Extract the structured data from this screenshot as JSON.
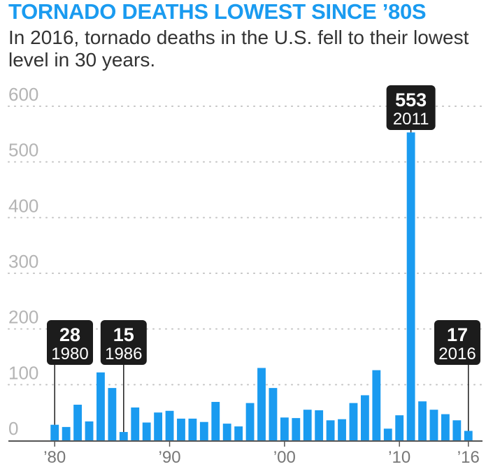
{
  "title": "TORNADO DEATHS LOWEST SINCE ’80S",
  "subtitle": "In 2016, tornado deaths in the U.S. fell to their lowest level in 30 years.",
  "colors": {
    "accent": "#1a9bf0",
    "bar": "#1a9bf0",
    "callout": "#1c1c1c",
    "text": "#333333"
  },
  "chart_data": {
    "type": "bar",
    "title": "TORNADO DEATHS LOWEST SINCE ’80S",
    "subtitle": "In 2016, tornado deaths in the U.S. fell to their lowest level in 30 years.",
    "xlabel": "",
    "ylabel": "",
    "ylim": [
      0,
      600
    ],
    "yticks": [
      0,
      100,
      200,
      300,
      400,
      500,
      600
    ],
    "grid": true,
    "xtick_labels": [
      {
        "year": 1980,
        "label": "’80"
      },
      {
        "year": 1990,
        "label": "’90"
      },
      {
        "year": 2000,
        "label": "’00"
      },
      {
        "year": 2010,
        "label": "’10"
      },
      {
        "year": 2016,
        "label": "’16"
      }
    ],
    "categories": [
      1980,
      1981,
      1982,
      1983,
      1984,
      1985,
      1986,
      1987,
      1988,
      1989,
      1990,
      1991,
      1992,
      1993,
      1994,
      1995,
      1996,
      1997,
      1998,
      1999,
      2000,
      2001,
      2002,
      2003,
      2004,
      2005,
      2006,
      2007,
      2008,
      2009,
      2010,
      2011,
      2012,
      2013,
      2014,
      2015,
      2016
    ],
    "values": [
      28,
      24,
      64,
      34,
      122,
      94,
      15,
      59,
      32,
      50,
      53,
      39,
      39,
      33,
      69,
      30,
      25,
      67,
      130,
      94,
      41,
      40,
      55,
      54,
      36,
      38,
      67,
      81,
      126,
      21,
      45,
      553,
      70,
      55,
      47,
      36,
      17
    ],
    "callouts": [
      {
        "year": 1980,
        "value": "28",
        "label": "1980"
      },
      {
        "year": 1986,
        "value": "15",
        "label": "1986"
      },
      {
        "year": 2011,
        "value": "553",
        "label": "2011"
      },
      {
        "year": 2016,
        "value": "17",
        "label": "2016"
      }
    ]
  }
}
